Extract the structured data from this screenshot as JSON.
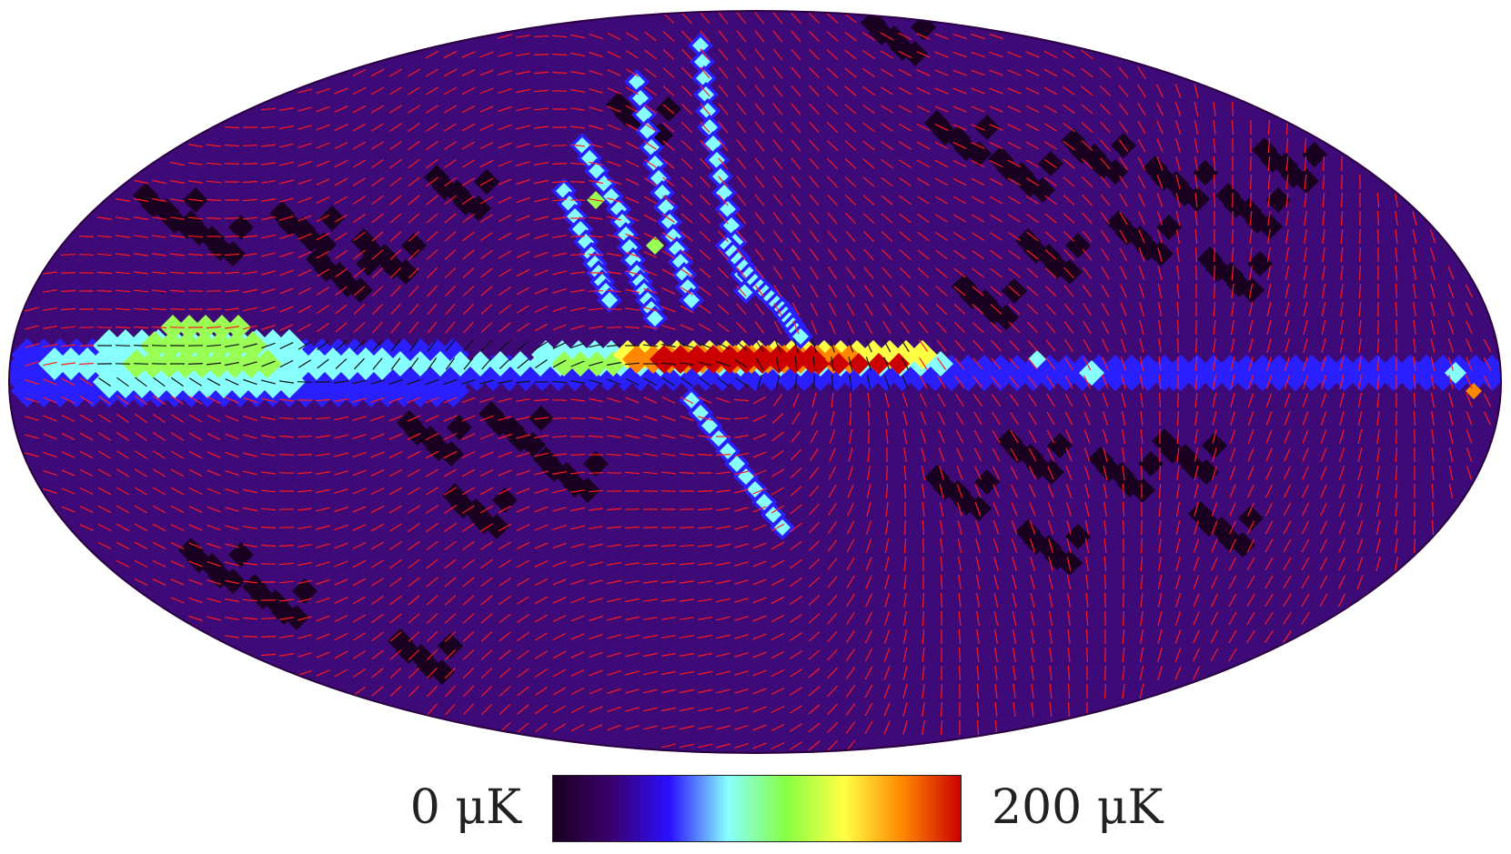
{
  "map": {
    "projection": "mollweide",
    "colormap": [
      "#1a0020",
      "#3a006e",
      "#2a10ff",
      "#88ffff",
      "#88ff44",
      "#ffff44",
      "#ff8800",
      "#cc0000"
    ],
    "polarization_vector_colors": {
      "on_low": "#ff1a1a",
      "on_high": "#111111"
    }
  },
  "colorbar": {
    "min_label": "0 μK",
    "max_label": "200 μK",
    "min_value": 0,
    "max_value": 200,
    "unit": "μK"
  }
}
